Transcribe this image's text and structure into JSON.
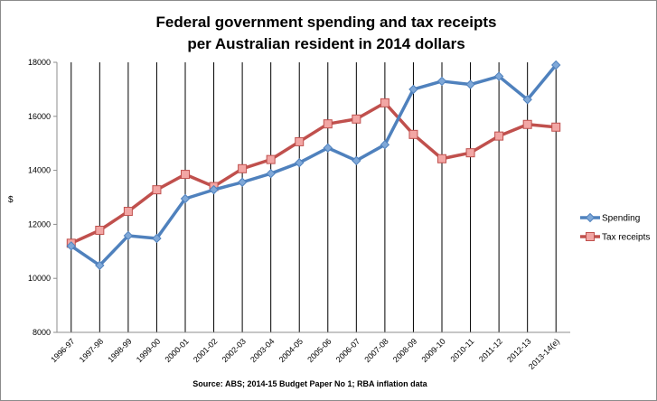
{
  "chart_data": {
    "type": "line",
    "title_lines": [
      "Federal government spending and tax receipts",
      "per Australian resident in 2014 dollars"
    ],
    "ylabel": "$",
    "xlabel": "",
    "ylim": [
      8000,
      18000
    ],
    "yticks": [
      8000,
      10000,
      12000,
      14000,
      16000,
      18000
    ],
    "grid": "vertical lines at each category",
    "legend": "right",
    "categories": [
      "1996-97",
      "1997-98",
      "1998-99",
      "1999-00",
      "2000-01",
      "2001-02",
      "2002-03",
      "2003-04",
      "2004-05",
      "2005-06",
      "2006-07",
      "2007-08",
      "2008-09",
      "2009-10",
      "2010-11",
      "2011-12",
      "2012-13",
      "2013-14(e)"
    ],
    "series": [
      {
        "name": "Spending",
        "color": "#4f81bd",
        "marker": "diamond",
        "values": [
          11200,
          10480,
          11580,
          11480,
          12950,
          13280,
          13560,
          13880,
          14280,
          14830,
          14360,
          14950,
          17000,
          17300,
          17180,
          17480,
          16620,
          17900
        ]
      },
      {
        "name": "Tax receipts",
        "color": "#c0504d",
        "marker": "square",
        "values": [
          11300,
          11780,
          12480,
          13280,
          13850,
          13400,
          14060,
          14400,
          15060,
          15720,
          15900,
          16500,
          15330,
          14430,
          14650,
          15270,
          15700,
          15600
        ]
      }
    ],
    "source": "Source: ABS; 2014-15 Budget Paper No 1; RBA inflation data"
  }
}
